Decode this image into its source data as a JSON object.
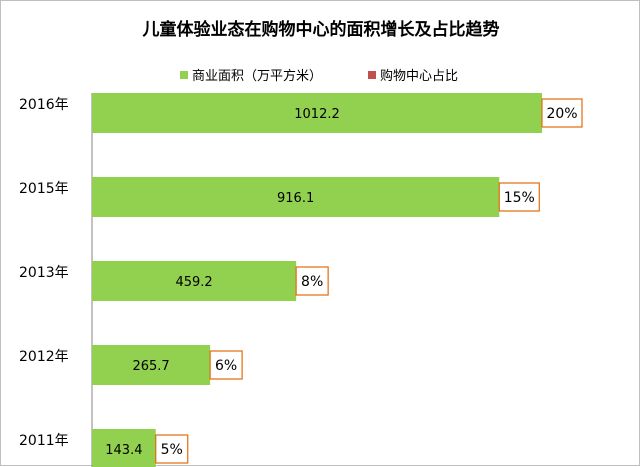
{
  "chart_data": {
    "type": "bar",
    "orientation": "horizontal",
    "title": "儿童体验业态在购物中心的面积增长及占比趋势",
    "categories": [
      "2016年",
      "2015年",
      "2013年",
      "2012年",
      "2011年"
    ],
    "series": [
      {
        "name": "商业面积（万平方米）",
        "values": [
          1012.2,
          916.1,
          459.2,
          265.7,
          143.4
        ],
        "labels": [
          "1012.2",
          "916.1",
          "459.2",
          "265.7",
          "143.4"
        ]
      },
      {
        "name": "购物中心占比",
        "values": [
          20,
          15,
          8,
          6,
          5
        ],
        "labels": [
          "20%",
          "15%",
          "8%",
          "6%",
          "5%"
        ]
      }
    ],
    "xlim": [
      0,
      1012.2
    ],
    "grid": false,
    "legend_position": "top",
    "colors": {
      "area": "#92d050",
      "ratio": "#c0504d",
      "ratio_box_border": "#e46c0a"
    }
  }
}
